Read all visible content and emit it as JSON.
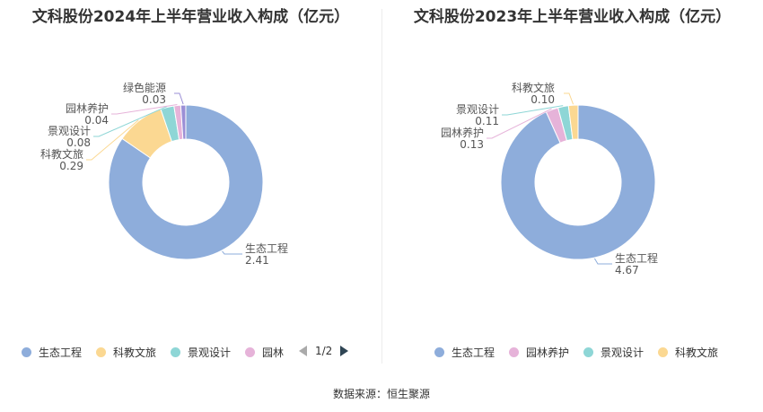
{
  "chart_data": [
    {
      "type": "pie",
      "title": "文科股份2024年上半年营业收入构成（亿元）",
      "slices": [
        {
          "name": "生态工程",
          "value": 2.41,
          "label": "2.41",
          "color": "#8eaddb"
        },
        {
          "name": "科教文旅",
          "value": 0.29,
          "label": "0.29",
          "color": "#fbd892"
        },
        {
          "name": "景观设计",
          "value": 0.08,
          "label": "0.08",
          "color": "#8ed6d6"
        },
        {
          "name": "园林养护",
          "value": 0.04,
          "label": "0.04",
          "color": "#e6b3d9"
        },
        {
          "name": "绿色能源",
          "value": 0.03,
          "label": "0.03",
          "color": "#9b8fd6"
        }
      ],
      "legend": {
        "items": [
          {
            "name": "生态工程",
            "color": "#8eaddb"
          },
          {
            "name": "科教文旅",
            "color": "#fbd892"
          },
          {
            "name": "景观设计",
            "color": "#8ed6d6"
          },
          {
            "name": "园林",
            "color": "#e6b3d9"
          }
        ],
        "page": "1/2"
      }
    },
    {
      "type": "pie",
      "title": "文科股份2023年上半年营业收入构成（亿元）",
      "slices": [
        {
          "name": "生态工程",
          "value": 4.67,
          "label": "4.67",
          "color": "#8eaddb"
        },
        {
          "name": "园林养护",
          "value": 0.13,
          "label": "0.13",
          "color": "#e6b3d9"
        },
        {
          "name": "景观设计",
          "value": 0.11,
          "label": "0.11",
          "color": "#8ed6d6"
        },
        {
          "name": "科教文旅",
          "value": 0.1,
          "label": "0.10",
          "color": "#fbd892"
        }
      ],
      "legend": {
        "items": [
          {
            "name": "生态工程",
            "color": "#8eaddb"
          },
          {
            "name": "园林养护",
            "color": "#e6b3d9"
          },
          {
            "name": "景观设计",
            "color": "#8ed6d6"
          },
          {
            "name": "科教文旅",
            "color": "#fbd892"
          }
        ]
      }
    }
  ],
  "source": "数据来源：恒生聚源"
}
